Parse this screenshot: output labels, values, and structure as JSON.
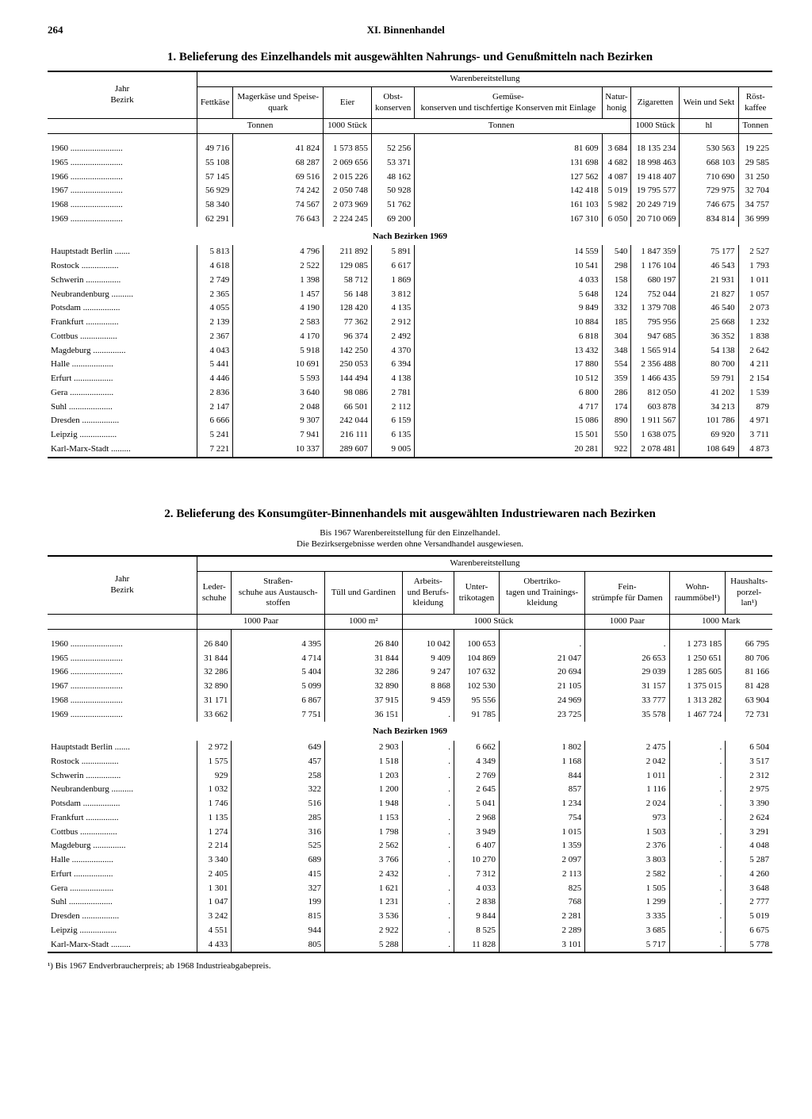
{
  "page": {
    "number": "264",
    "chapter": "XI. Binnenhandel"
  },
  "t1": {
    "title": "1. Belieferung des Einzelhandels mit ausgewählten Nahrungs- und Genußmitteln nach Bezirken",
    "spanner": "Warenbereitstellung",
    "stub": "Jahr\nBezirk",
    "cols": [
      "Fettkäse",
      "Magerkäse und Speise-quark",
      "Eier",
      "Obst-konserven",
      "Gemüse-konserven und tischfertige Konserven mit Einlage",
      "Natur-honig",
      "Zigaretten",
      "Wein und Sekt",
      "Röst-kaffee"
    ],
    "units": [
      "Tonnen",
      "1000 Stück",
      "Tonnen",
      "1000 Stück",
      "hl",
      "Tonnen"
    ],
    "unit_spans": [
      2,
      1,
      3,
      1,
      1,
      1
    ],
    "section": "Nach Bezirken 1969",
    "years": [
      {
        "l": "1960",
        "v": [
          "49 716",
          "41 824",
          "1 573 855",
          "52 256",
          "81 609",
          "3 684",
          "18 135 234",
          "530 563",
          "19 225"
        ]
      },
      {
        "l": "1965",
        "v": [
          "55 108",
          "68 287",
          "2 069 656",
          "53 371",
          "131 698",
          "4 682",
          "18 998 463",
          "668 103",
          "29 585"
        ]
      },
      {
        "l": "1966",
        "v": [
          "57 145",
          "69 516",
          "2 015 226",
          "48 162",
          "127 562",
          "4 087",
          "19 418 407",
          "710 690",
          "31 250"
        ]
      },
      {
        "l": "1967",
        "v": [
          "56 929",
          "74 242",
          "2 050 748",
          "50 928",
          "142 418",
          "5 019",
          "19 795 577",
          "729 975",
          "32 704"
        ]
      },
      {
        "l": "1968",
        "v": [
          "58 340",
          "74 567",
          "2 073 969",
          "51 762",
          "161 103",
          "5 982",
          "20 249 719",
          "746 675",
          "34 757"
        ]
      },
      {
        "l": "1969",
        "v": [
          "62 291",
          "76 643",
          "2 224 245",
          "69 200",
          "167 310",
          "6 050",
          "20 710 069",
          "834 814",
          "36 999"
        ]
      }
    ],
    "bezirke": [
      {
        "l": "Hauptstadt Berlin",
        "v": [
          "5 813",
          "4 796",
          "211 892",
          "5 891",
          "14 559",
          "540",
          "1 847 359",
          "75 177",
          "2 527"
        ]
      },
      {
        "l": "Rostock",
        "v": [
          "4 618",
          "2 522",
          "129 085",
          "6 617",
          "10 541",
          "298",
          "1 176 104",
          "46 543",
          "1 793"
        ]
      },
      {
        "l": "Schwerin",
        "v": [
          "2 749",
          "1 398",
          "58 712",
          "1 869",
          "4 033",
          "158",
          "680 197",
          "21 931",
          "1 011"
        ]
      },
      {
        "l": "Neubrandenburg",
        "v": [
          "2 365",
          "1 457",
          "56 148",
          "3 812",
          "5 648",
          "124",
          "752 044",
          "21 827",
          "1 057"
        ]
      },
      {
        "l": "Potsdam",
        "v": [
          "4 055",
          "4 190",
          "128 420",
          "4 135",
          "9 849",
          "332",
          "1 379 708",
          "46 540",
          "2 073"
        ]
      },
      {
        "l": "Frankfurt",
        "v": [
          "2 139",
          "2 583",
          "77 362",
          "2 912",
          "10 884",
          "185",
          "795 956",
          "25 668",
          "1 232"
        ]
      },
      {
        "l": "Cottbus",
        "v": [
          "2 367",
          "4 170",
          "96 374",
          "2 492",
          "6 818",
          "304",
          "947 685",
          "36 352",
          "1 838"
        ]
      },
      {
        "l": "Magdeburg",
        "v": [
          "4 043",
          "5 918",
          "142 250",
          "4 370",
          "13 432",
          "348",
          "1 565 914",
          "54 138",
          "2 642"
        ]
      },
      {
        "l": "Halle",
        "v": [
          "5 441",
          "10 691",
          "250 053",
          "6 394",
          "17 880",
          "554",
          "2 356 488",
          "80 700",
          "4 211"
        ]
      },
      {
        "l": "Erfurt",
        "v": [
          "4 446",
          "5 593",
          "144 494",
          "4 138",
          "10 512",
          "359",
          "1 466 435",
          "59 791",
          "2 154"
        ]
      },
      {
        "l": "Gera",
        "v": [
          "2 836",
          "3 640",
          "98 086",
          "2 781",
          "6 800",
          "286",
          "812 050",
          "41 202",
          "1 539"
        ]
      },
      {
        "l": "Suhl",
        "v": [
          "2 147",
          "2 048",
          "66 501",
          "2 112",
          "4 717",
          "174",
          "603 878",
          "34 213",
          "879"
        ]
      },
      {
        "l": "Dresden",
        "v": [
          "6 666",
          "9 307",
          "242 044",
          "6 159",
          "15 086",
          "890",
          "1 911 567",
          "101 786",
          "4 971"
        ]
      },
      {
        "l": "Leipzig",
        "v": [
          "5 241",
          "7 941",
          "216 111",
          "6 135",
          "15 501",
          "550",
          "1 638 075",
          "69 920",
          "3 711"
        ]
      },
      {
        "l": "Karl-Marx-Stadt",
        "v": [
          "7 221",
          "10 337",
          "289 607",
          "9 005",
          "20 281",
          "922",
          "2 078 481",
          "108 649",
          "4 873"
        ]
      }
    ]
  },
  "t2": {
    "title": "2. Belieferung des Konsumgüter-Binnenhandels mit ausgewählten Industriewaren nach Bezirken",
    "subtitle": "Bis 1967 Warenbereitstellung für den Einzelhandel.\nDie Bezirksergebnisse werden ohne Versandhandel ausgewiesen.",
    "spanner": "Warenbereitstellung",
    "stub": "Jahr\nBezirk",
    "cols": [
      "Leder-schuhe",
      "Straßen-schuhe aus Austausch-stoffen",
      "Tüll und Gardinen",
      "Arbeits- und Berufs-kleidung",
      "Unter-trikotagen",
      "Obertriko-tagen und Trainings-kleidung",
      "Fein-strümpfe für Damen",
      "Wohn-raummöbel¹)",
      "Haushalts-porzel-lan¹)"
    ],
    "units": [
      "1000 Paar",
      "1000 m²",
      "1000 Stück",
      "1000 Paar",
      "1000 Mark"
    ],
    "unit_spans": [
      2,
      1,
      3,
      1,
      2
    ],
    "section": "Nach Bezirken 1969",
    "years": [
      {
        "l": "1960",
        "v": [
          "26 840",
          "4 395",
          "26 840",
          "10 042",
          "100 653",
          ".",
          ".",
          "1 273 185",
          "66 795"
        ]
      },
      {
        "l": "1965",
        "v": [
          "31 844",
          "4 714",
          "31 844",
          "9 409",
          "104 869",
          "21 047",
          "26 653",
          "1 250 651",
          "80 706"
        ]
      },
      {
        "l": "1966",
        "v": [
          "32 286",
          "5 404",
          "32 286",
          "9 247",
          "107 632",
          "20 694",
          "29 039",
          "1 285 605",
          "81 166"
        ]
      },
      {
        "l": "1967",
        "v": [
          "32 890",
          "5 099",
          "32 890",
          "8 868",
          "102 530",
          "21 105",
          "31 157",
          "1 375 015",
          "81 428"
        ]
      },
      {
        "l": "1968",
        "v": [
          "31 171",
          "6 867",
          "37 915",
          "9 459",
          "95 556",
          "24 969",
          "33 777",
          "1 313 282",
          "63 904"
        ]
      },
      {
        "l": "1969",
        "v": [
          "33 662",
          "7 751",
          "36 151",
          ".",
          "91 785",
          "23 725",
          "35 578",
          "1 467 724",
          "72 731"
        ]
      }
    ],
    "bezirke": [
      {
        "l": "Hauptstadt Berlin",
        "v": [
          "2 972",
          "649",
          "2 903",
          ".",
          "6 662",
          "1 802",
          "2 475",
          ".",
          "6 504"
        ]
      },
      {
        "l": "Rostock",
        "v": [
          "1 575",
          "457",
          "1 518",
          ".",
          "4 349",
          "1 168",
          "2 042",
          ".",
          "3 517"
        ]
      },
      {
        "l": "Schwerin",
        "v": [
          "929",
          "258",
          "1 203",
          ".",
          "2 769",
          "844",
          "1 011",
          ".",
          "2 312"
        ]
      },
      {
        "l": "Neubrandenburg",
        "v": [
          "1 032",
          "322",
          "1 200",
          ".",
          "2 645",
          "857",
          "1 116",
          ".",
          "2 975"
        ]
      },
      {
        "l": "Potsdam",
        "v": [
          "1 746",
          "516",
          "1 948",
          ".",
          "5 041",
          "1 234",
          "2 024",
          ".",
          "3 390"
        ]
      },
      {
        "l": "Frankfurt",
        "v": [
          "1 135",
          "285",
          "1 153",
          ".",
          "2 968",
          "754",
          "973",
          ".",
          "2 624"
        ]
      },
      {
        "l": "Cottbus",
        "v": [
          "1 274",
          "316",
          "1 798",
          ".",
          "3 949",
          "1 015",
          "1 503",
          ".",
          "3 291"
        ]
      },
      {
        "l": "Magdeburg",
        "v": [
          "2 214",
          "525",
          "2 562",
          ".",
          "6 407",
          "1 359",
          "2 376",
          ".",
          "4 048"
        ]
      },
      {
        "l": "Halle",
        "v": [
          "3 340",
          "689",
          "3 766",
          ".",
          "10 270",
          "2 097",
          "3 803",
          ".",
          "5 287"
        ]
      },
      {
        "l": "Erfurt",
        "v": [
          "2 405",
          "415",
          "2 432",
          ".",
          "7 312",
          "2 113",
          "2 582",
          ".",
          "4 260"
        ]
      },
      {
        "l": "Gera",
        "v": [
          "1 301",
          "327",
          "1 621",
          ".",
          "4 033",
          "825",
          "1 505",
          ".",
          "3 648"
        ]
      },
      {
        "l": "Suhl",
        "v": [
          "1 047",
          "199",
          "1 231",
          ".",
          "2 838",
          "768",
          "1 299",
          ".",
          "2 777"
        ]
      },
      {
        "l": "Dresden",
        "v": [
          "3 242",
          "815",
          "3 536",
          ".",
          "9 844",
          "2 281",
          "3 335",
          ".",
          "5 019"
        ]
      },
      {
        "l": "Leipzig",
        "v": [
          "4 551",
          "944",
          "2 922",
          ".",
          "8 525",
          "2 289",
          "3 685",
          ".",
          "6 675"
        ]
      },
      {
        "l": "Karl-Marx-Stadt",
        "v": [
          "4 433",
          "805",
          "5 288",
          ".",
          "11 828",
          "3 101",
          "5 717",
          ".",
          "5 778"
        ]
      }
    ],
    "footnote": "¹) Bis 1967 Endverbraucherpreis; ab 1968 Industrieabgabepreis."
  },
  "style": {
    "label_width": 180,
    "dots_fill": " ........................"
  }
}
